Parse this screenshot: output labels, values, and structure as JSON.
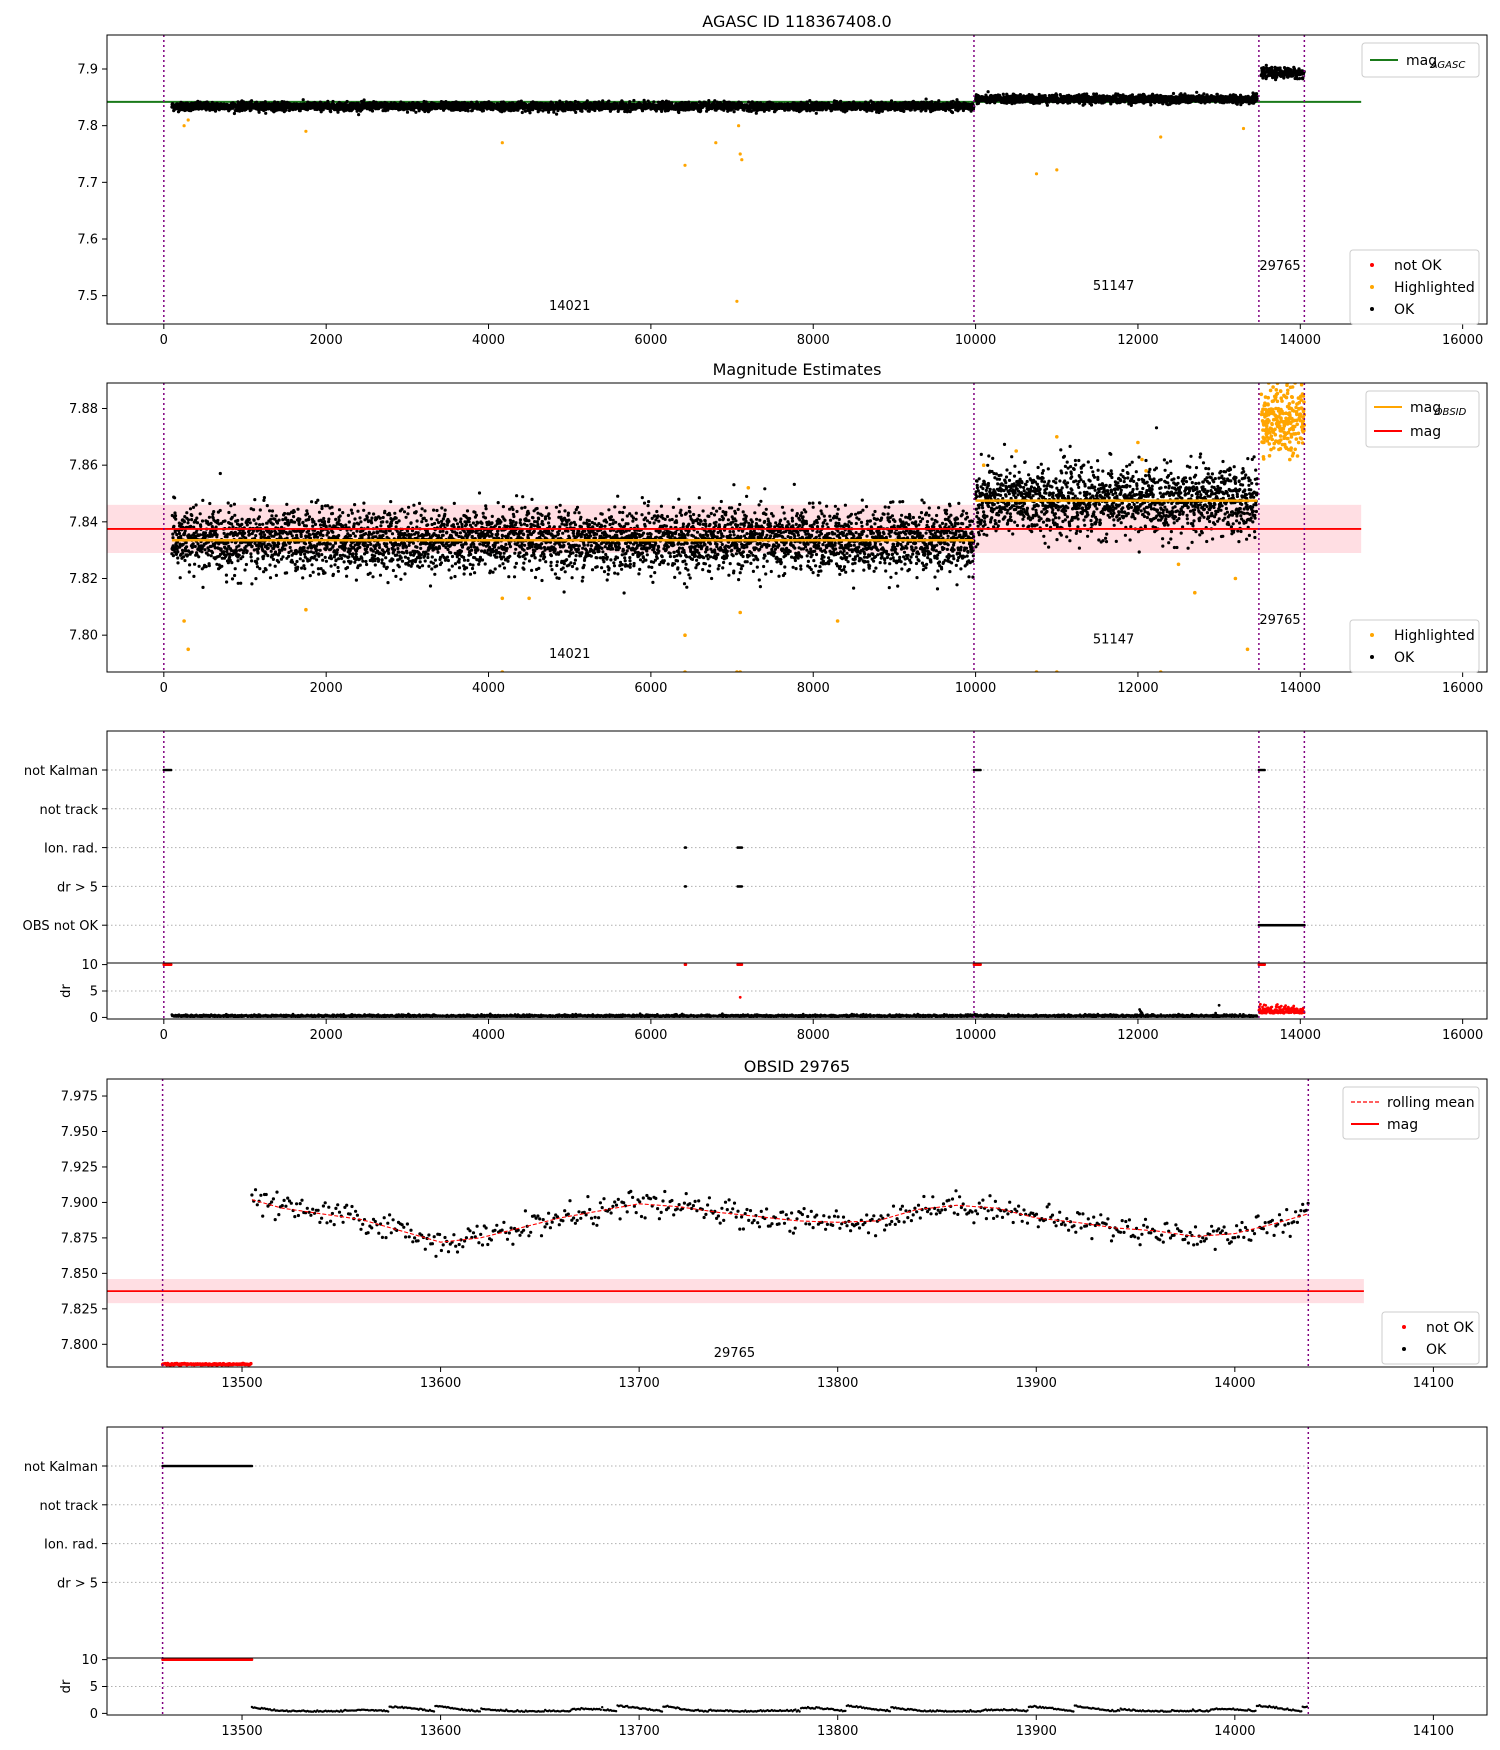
{
  "chart_data": [
    {
      "id": "agasc",
      "type": "scatter",
      "title": "AGASC ID 118367408.0",
      "xlim": [
        -700,
        16300
      ],
      "ylim": [
        7.45,
        7.96
      ],
      "x_ticks": [
        0,
        2000,
        4000,
        6000,
        8000,
        10000,
        12000,
        14000,
        16000
      ],
      "y_ticks": [
        7.5,
        7.6,
        7.7,
        7.8,
        7.9
      ],
      "vlines": [
        0,
        9980,
        13490,
        14050
      ],
      "obsid_labels": [
        {
          "text": "14021",
          "x": 5000,
          "y": 7.475
        },
        {
          "text": "51147",
          "x": 11700,
          "y": 7.51
        },
        {
          "text": "29765",
          "x": 13750,
          "y": 7.545
        }
      ],
      "hlines": [
        {
          "name": "mag_AGASC",
          "y": 7.842,
          "color": "#1a7a1a",
          "x_range": [
            -700,
            14750
          ]
        }
      ],
      "legend": [
        {
          "label": "mag",
          "sub": "AGASC",
          "kind": "line",
          "color": "#1a7a1a"
        },
        {
          "label": "not OK",
          "kind": "point",
          "color": "#ff0000"
        },
        {
          "label": "Highlighted",
          "kind": "point",
          "color": "#ffa500"
        },
        {
          "label": "OK",
          "kind": "point",
          "color": "#000000"
        }
      ],
      "series": [
        {
          "name": "OK",
          "color": "#000000",
          "segments": [
            [
              100,
              9980,
              7.834,
              0.006
            ],
            [
              10000,
              13470,
              7.847,
              0.006
            ],
            [
              13520,
              14050,
              7.893,
              0.007
            ]
          ]
        },
        {
          "name": "Highlighted",
          "color": "#ffa500",
          "x": [
            300,
            1750,
            4170,
            6420,
            6800,
            7060,
            7100,
            7120,
            10750,
            11000,
            12280,
            13300,
            7080,
            250
          ],
          "y": [
            7.81,
            7.79,
            7.77,
            7.73,
            7.77,
            7.49,
            7.75,
            7.74,
            7.715,
            7.722,
            7.78,
            7.795,
            7.8,
            7.8
          ]
        }
      ]
    },
    {
      "id": "mag",
      "type": "scatter",
      "title": "Magnitude Estimates",
      "xlim": [
        -700,
        16300
      ],
      "ylim": [
        7.787,
        7.889
      ],
      "x_ticks": [
        0,
        2000,
        4000,
        6000,
        8000,
        10000,
        12000,
        14000,
        16000
      ],
      "y_ticks": [
        7.8,
        7.82,
        7.84,
        7.86,
        7.88
      ],
      "vlines": [
        0,
        9980,
        13490,
        14050
      ],
      "obsid_labels": [
        {
          "text": "14021",
          "x": 5000,
          "y": 7.792
        },
        {
          "text": "51147",
          "x": 11700,
          "y": 7.797
        },
        {
          "text": "29765",
          "x": 13750,
          "y": 7.804
        }
      ],
      "band": {
        "y0": 7.829,
        "y1": 7.846,
        "color": "#ffb6c1",
        "x_range": [
          -700,
          14750
        ]
      },
      "hlines": [
        {
          "name": "mag",
          "y": 7.8375,
          "color": "#ff0000",
          "x_range": [
            -700,
            14750
          ]
        },
        {
          "name": "mag_OBSID",
          "segments": [
            [
              100,
              9980,
              7.8335
            ],
            [
              10000,
              13470,
              7.8475
            ]
          ],
          "color": "#ffa500"
        }
      ],
      "legend_top": [
        {
          "label": "mag",
          "sub": "OBSID",
          "kind": "line",
          "color": "#ffa500"
        },
        {
          "label": "mag",
          "kind": "line",
          "color": "#ff0000"
        }
      ],
      "legend_bottom": [
        {
          "label": "Highlighted",
          "kind": "point",
          "color": "#ffa500"
        },
        {
          "label": "OK",
          "kind": "point",
          "color": "#000000"
        }
      ],
      "series": [
        {
          "name": "OK",
          "color": "#000000",
          "segments": [
            [
              100,
              9980,
              7.8335,
              0.0055
            ],
            [
              10000,
              13470,
              7.8475,
              0.006
            ]
          ]
        },
        {
          "name": "Highlighted",
          "color": "#ffa500",
          "x": [
            250,
            300,
            1750,
            4170,
            4500,
            6420,
            7100,
            7200,
            8300,
            10100,
            10500,
            11000,
            12000,
            12050,
            12100,
            12500,
            12700,
            13200,
            13350,
            13520,
            13600,
            13700,
            13800,
            13900,
            14000
          ],
          "y": [
            7.805,
            7.795,
            7.809,
            7.813,
            7.813,
            7.8,
            7.808,
            7.852,
            7.805,
            7.86,
            7.865,
            7.87,
            7.868,
            7.862,
            7.858,
            7.825,
            7.815,
            7.82,
            7.795,
            7.885,
            7.875,
            7.88,
            7.87,
            7.884,
            7.878
          ]
        },
        {
          "name": "Highlighted-clipped",
          "color": "#ffa500",
          "x": [
            4170,
            6420,
            7060,
            7100,
            10750,
            11000,
            12280
          ],
          "y": [
            7.787,
            7.787,
            7.787,
            7.787,
            7.787,
            7.787,
            7.787
          ]
        }
      ]
    },
    {
      "id": "flags1",
      "type": "scatter",
      "xlim": [
        -700,
        16300
      ],
      "x_ticks": [
        0,
        2000,
        4000,
        6000,
        8000,
        10000,
        12000,
        14000,
        16000
      ],
      "vlines": [
        0,
        9980,
        13490,
        14050
      ],
      "categories": [
        "not Kalman",
        "not track",
        "Ion. rad.",
        "dr > 5",
        "OBS not OK"
      ],
      "flag_points": [
        {
          "category": "not Kalman",
          "x_ranges": [
            [
              0,
              90
            ],
            [
              9980,
              10060
            ],
            [
              13490,
              13560
            ]
          ]
        },
        {
          "category": "Ion. rad.",
          "x_ranges": [
            [
              6420,
              6430
            ],
            [
              7070,
              7120
            ]
          ]
        },
        {
          "category": "dr > 5",
          "x_ranges": [
            [
              6420,
              6430
            ],
            [
              7070,
              7120
            ]
          ]
        },
        {
          "category": "OBS not OK",
          "x_ranges": [
            [
              13490,
              14050
            ]
          ]
        }
      ],
      "dr_axis": {
        "ylabel": "dr",
        "ylim": [
          -0.3,
          10.3
        ],
        "y_ticks": [
          0,
          5,
          10
        ]
      },
      "dr_series": [
        {
          "name": "OK",
          "color": "#000000",
          "segments": [
            [
              100,
              9980,
              0.15,
              0.15
            ],
            [
              10000,
              13470,
              0.15,
              0.15
            ]
          ]
        },
        {
          "name": "OK-extra",
          "color": "#000000",
          "x": [
            12020,
            12030,
            12040,
            12050,
            12500,
            13000,
            11700,
            9990
          ],
          "y": [
            1.5,
            1.2,
            1.0,
            0.8,
            0.6,
            2.3,
            0.5,
            0.6
          ]
        },
        {
          "name": "not OK",
          "color": "#ff0000",
          "segments": [
            [
              13490,
              14050,
              0.8,
              0.6
            ]
          ]
        },
        {
          "name": "not OK-top",
          "color": "#ff0000",
          "x_ranges": [
            [
              0,
              90
            ],
            [
              6420,
              6430
            ],
            [
              7070,
              7120
            ],
            [
              9980,
              10060
            ],
            [
              13490,
              13560
            ]
          ],
          "y": 10
        },
        {
          "name": "not OK-extra",
          "color": "#ff0000",
          "x": [
            7100
          ],
          "y": [
            3.8
          ]
        }
      ]
    },
    {
      "id": "obsid",
      "type": "line",
      "title": "OBSID 29765",
      "xlim": [
        13432,
        14127
      ],
      "ylim": [
        7.784,
        7.987
      ],
      "x_ticks": [
        13500,
        13600,
        13700,
        13800,
        13900,
        14000,
        14100
      ],
      "y_ticks": [
        7.8,
        7.825,
        7.85,
        7.875,
        7.9,
        7.925,
        7.95,
        7.975
      ],
      "vlines": [
        13460,
        14037
      ],
      "obsid_labels": [
        {
          "text": "29765",
          "x": 13748,
          "y": 7.791
        }
      ],
      "band": {
        "y0": 7.829,
        "y1": 7.846,
        "color": "#ffb6c1",
        "x_range": [
          13432,
          14065
        ]
      },
      "hlines": [
        {
          "name": "mag",
          "y": 7.8375,
          "color": "#ff0000",
          "x_range": [
            13432,
            14065
          ]
        }
      ],
      "legend_top": [
        {
          "label": "rolling mean",
          "kind": "dashed",
          "color": "#ff0000"
        },
        {
          "label": "mag",
          "kind": "line",
          "color": "#ff0000"
        }
      ],
      "legend_bottom": [
        {
          "label": "not OK",
          "kind": "point",
          "color": "#ff0000"
        },
        {
          "label": "OK",
          "kind": "point",
          "color": "#000000"
        }
      ],
      "rolling_mean": {
        "x": [
          13505,
          13520,
          13540,
          13560,
          13580,
          13600,
          13620,
          13640,
          13660,
          13680,
          13700,
          13720,
          13740,
          13760,
          13780,
          13800,
          13820,
          13840,
          13860,
          13880,
          13900,
          13920,
          13940,
          13960,
          13980,
          14000,
          14020,
          14037
        ],
        "y": [
          7.902,
          7.896,
          7.892,
          7.888,
          7.88,
          7.872,
          7.875,
          7.882,
          7.889,
          7.894,
          7.899,
          7.897,
          7.893,
          7.89,
          7.887,
          7.886,
          7.887,
          7.895,
          7.898,
          7.896,
          7.889,
          7.886,
          7.882,
          7.88,
          7.876,
          7.878,
          7.885,
          7.892
        ]
      },
      "series": [
        {
          "name": "not OK",
          "color": "#ff0000",
          "segments": [
            [
              13460,
              13505,
              7.786,
              0.0005
            ]
          ]
        }
      ]
    },
    {
      "id": "flags2",
      "type": "scatter",
      "xlim": [
        13432,
        14127
      ],
      "x_ticks": [
        13500,
        13600,
        13700,
        13800,
        13900,
        14000,
        14100
      ],
      "vlines": [
        13460,
        14037
      ],
      "categories": [
        "not Kalman",
        "not track",
        "Ion. rad.",
        "dr > 5"
      ],
      "flag_points": [
        {
          "category": "not Kalman",
          "x_ranges": [
            [
              13460,
              13505
            ]
          ]
        }
      ],
      "dr_axis": {
        "ylabel": "dr",
        "ylim": [
          -0.3,
          10.3
        ],
        "y_ticks": [
          0,
          5,
          10
        ]
      },
      "dr_series": [
        {
          "name": "not OK-top",
          "color": "#ff0000",
          "x_ranges": [
            [
              13460,
              13505
            ]
          ],
          "y": 10
        }
      ]
    }
  ]
}
